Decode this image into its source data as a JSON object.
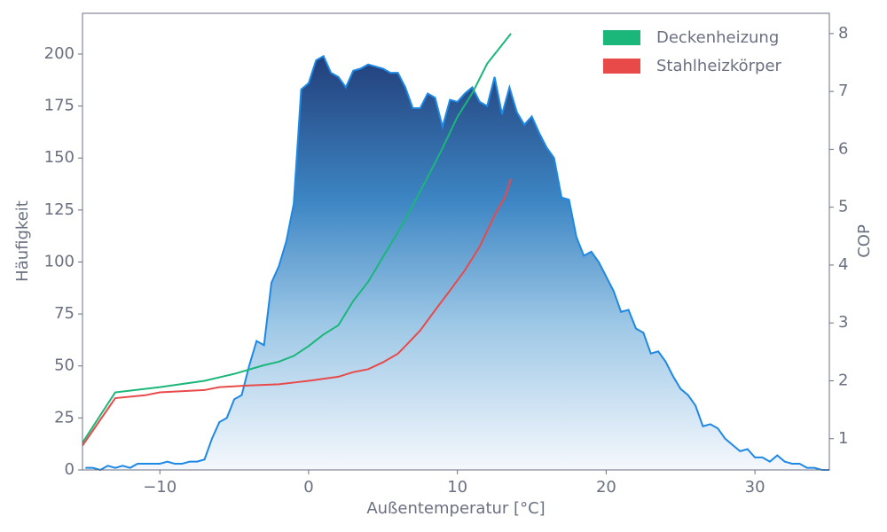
{
  "chart_data": {
    "type": "area",
    "xlabel": "Außentemperatur [°C]",
    "ylabel": "Häufigkeit",
    "y2label": "COP",
    "x": [
      -15,
      -14.5,
      -14,
      -13.5,
      -13,
      -12.5,
      -12,
      -11.5,
      -11,
      -10.5,
      -10,
      -9.5,
      -9,
      -8.5,
      -8,
      -7.5,
      -7,
      -6.5,
      -6,
      -5.5,
      -5,
      -4.5,
      -4,
      -3.5,
      -3,
      -2.5,
      -2,
      -1.5,
      -1,
      -0.5,
      0,
      0.5,
      1,
      1.5,
      2,
      2.5,
      3,
      3.5,
      4,
      4.5,
      5,
      5.5,
      6,
      6.5,
      7,
      7.5,
      8,
      8.5,
      9,
      9.5,
      10,
      10.5,
      11,
      11.5,
      12,
      12.5,
      13,
      13.5,
      14,
      14.5,
      15,
      15.5,
      16,
      16.5,
      17,
      17.5,
      18,
      18.5,
      19,
      19.5,
      20,
      20.5,
      21,
      21.5,
      22,
      22.5,
      23,
      23.5,
      24,
      24.5,
      25,
      25.5,
      26,
      26.5,
      27,
      27.5,
      28,
      28.5,
      29,
      29.5,
      30,
      30.5,
      31,
      31.5,
      32,
      32.5,
      33,
      33.5,
      34,
      34.5,
      35
    ],
    "values": [
      1,
      1,
      0,
      2,
      1,
      2,
      1,
      3,
      3,
      3,
      3,
      4,
      3,
      3,
      4,
      4,
      5,
      15,
      23,
      25,
      34,
      36,
      50,
      62,
      60,
      90,
      98,
      110,
      128,
      183,
      186,
      197,
      199,
      191,
      189,
      184,
      192,
      193,
      195,
      194,
      193,
      191,
      191,
      184,
      174,
      174,
      181,
      179,
      165,
      178,
      177,
      181,
      184,
      177,
      175,
      189,
      171,
      184,
      172,
      166,
      170,
      162,
      155,
      150,
      131,
      130,
      112,
      103,
      105,
      100,
      93,
      86,
      76,
      77,
      68,
      66,
      56,
      57,
      52,
      45,
      39,
      36,
      31,
      21,
      22,
      20,
      15,
      12,
      9,
      10,
      6,
      6,
      4,
      7,
      4,
      3,
      3,
      1,
      1,
      0,
      0
    ],
    "color": "#1e88e5",
    "series": [
      {
        "name": "Deckenheizung",
        "color": "#1ab67a",
        "axis": "y2",
        "x": [
          -15.2,
          -13,
          -10,
          -7,
          -5,
          -3,
          -2,
          -1,
          0,
          1,
          2,
          3,
          4,
          5,
          6,
          7,
          8,
          9,
          10,
          11,
          12,
          13.6
        ],
        "values": [
          0.93,
          1.8,
          1.89,
          2.0,
          2.12,
          2.27,
          2.33,
          2.43,
          2.6,
          2.8,
          2.96,
          3.38,
          3.71,
          4.14,
          4.57,
          5.03,
          5.52,
          6.02,
          6.56,
          6.97,
          7.48,
          8.0
        ]
      },
      {
        "name": "Stahlheizkörper",
        "color": "#e84a4a",
        "axis": "y2",
        "x": [
          -15.2,
          -13,
          -11,
          -10,
          -7,
          -6,
          -4,
          -2,
          -1,
          0,
          2,
          3,
          4,
          5,
          6,
          6.5,
          7.5,
          8.5,
          9.5,
          10.5,
          11.5,
          12.5,
          13.2,
          13.6
        ],
        "values": [
          0.88,
          1.7,
          1.75,
          1.8,
          1.84,
          1.89,
          1.92,
          1.94,
          1.97,
          2.0,
          2.07,
          2.15,
          2.2,
          2.32,
          2.47,
          2.6,
          2.87,
          3.22,
          3.56,
          3.91,
          4.32,
          4.86,
          5.18,
          5.49
        ]
      }
    ],
    "xlim": [
      -15.2,
      35
    ],
    "ylim": [
      0,
      219.6
    ],
    "y2lim": [
      0.46,
      8.35
    ],
    "xticks": [
      {
        "value": -10,
        "label": "−10"
      },
      0,
      10,
      20,
      30
    ],
    "yticks": [
      0,
      25,
      50,
      75,
      100,
      125,
      150,
      175,
      200
    ],
    "y2ticks": [
      1,
      2,
      3,
      4,
      5,
      6,
      7,
      8
    ],
    "legend": "upper-right"
  }
}
